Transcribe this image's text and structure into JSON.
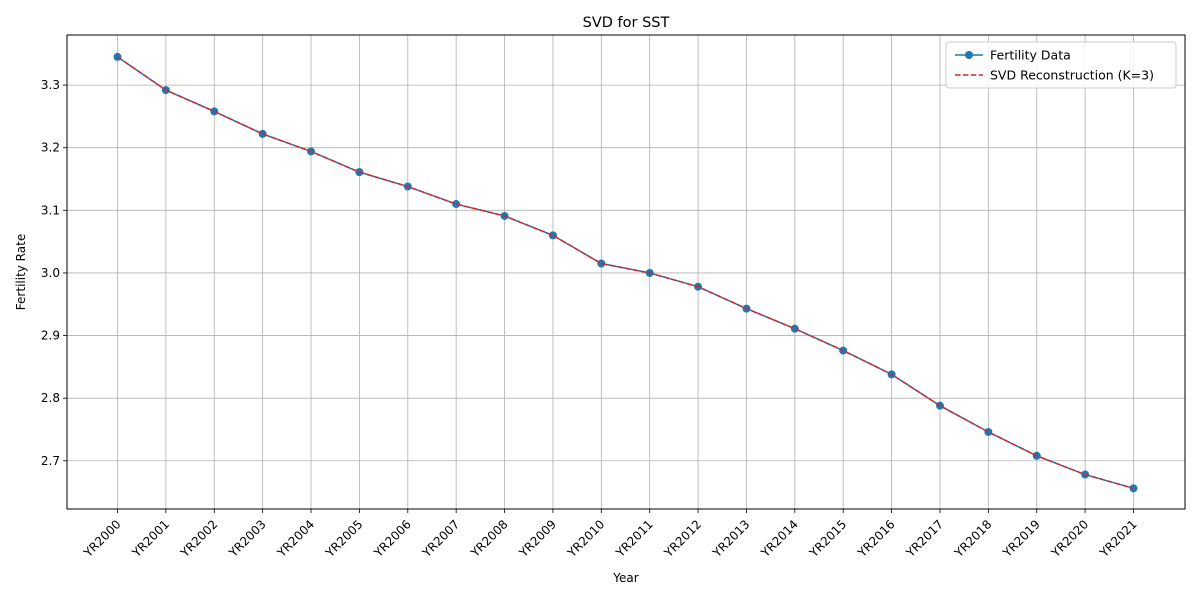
{
  "chart_data": {
    "type": "line",
    "title": "SVD for SST",
    "xlabel": "Year",
    "ylabel": "Fertility Rate",
    "categories": [
      "YR2000",
      "YR2001",
      "YR2002",
      "YR2003",
      "YR2004",
      "YR2005",
      "YR2006",
      "YR2007",
      "YR2008",
      "YR2009",
      "YR2010",
      "YR2011",
      "YR2012",
      "YR2013",
      "YR2014",
      "YR2015",
      "YR2016",
      "YR2017",
      "YR2018",
      "YR2019",
      "YR2020",
      "YR2021"
    ],
    "ylim": [
      2.623,
      3.38
    ],
    "yticks": [
      2.7,
      2.8,
      2.9,
      3.0,
      3.1,
      3.2,
      3.3
    ],
    "ytick_labels": [
      "2.7",
      "2.8",
      "2.9",
      "3.0",
      "3.1",
      "3.2",
      "3.3"
    ],
    "grid": true,
    "legend_position": "top-right",
    "series": [
      {
        "name": "Fertility Data",
        "color": "#1f77b4",
        "style": "solid-with-circle-markers",
        "values": [
          3.345,
          3.292,
          3.258,
          3.222,
          3.194,
          3.161,
          3.138,
          3.11,
          3.091,
          3.06,
          3.015,
          3.0,
          2.978,
          2.943,
          2.911,
          2.876,
          2.838,
          2.788,
          2.746,
          2.708,
          2.678,
          2.656
        ]
      },
      {
        "name": "SVD Reconstruction (K=3)",
        "color": "#d62728",
        "style": "dashed",
        "values": [
          3.345,
          3.292,
          3.258,
          3.222,
          3.194,
          3.161,
          3.138,
          3.11,
          3.091,
          3.06,
          3.015,
          3.0,
          2.978,
          2.943,
          2.911,
          2.876,
          2.838,
          2.788,
          2.746,
          2.708,
          2.678,
          2.656
        ]
      }
    ]
  }
}
